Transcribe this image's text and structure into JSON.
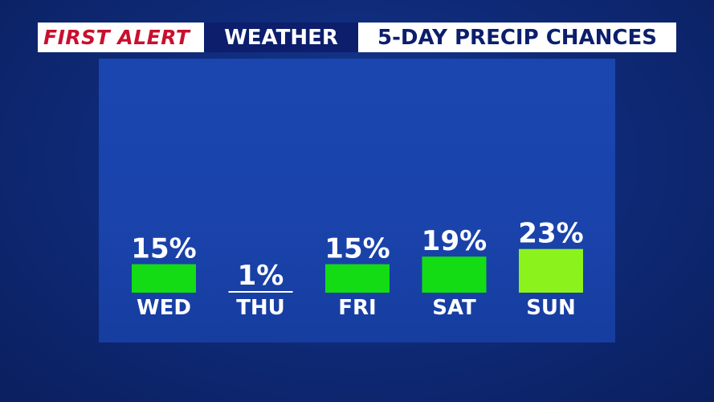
{
  "header": {
    "brand": "FIRST ALERT",
    "section": "WEATHER",
    "title": "5-DAY PRECIP CHANCES"
  },
  "colors": {
    "bar_default": "#14dc14",
    "bar_highlight": "#8cf21c",
    "header_red": "#c8102e",
    "header_navy": "#0c1e6c"
  },
  "chart_data": {
    "type": "bar",
    "title": "5-DAY PRECIP CHANCES",
    "categories": [
      "WED",
      "THU",
      "FRI",
      "SAT",
      "SUN"
    ],
    "values": [
      15,
      1,
      15,
      19,
      23
    ],
    "value_labels": [
      "15%",
      "1%",
      "15%",
      "19%",
      "23%"
    ],
    "highlight_index": 4,
    "ylim": [
      0,
      100
    ],
    "grid": false
  }
}
